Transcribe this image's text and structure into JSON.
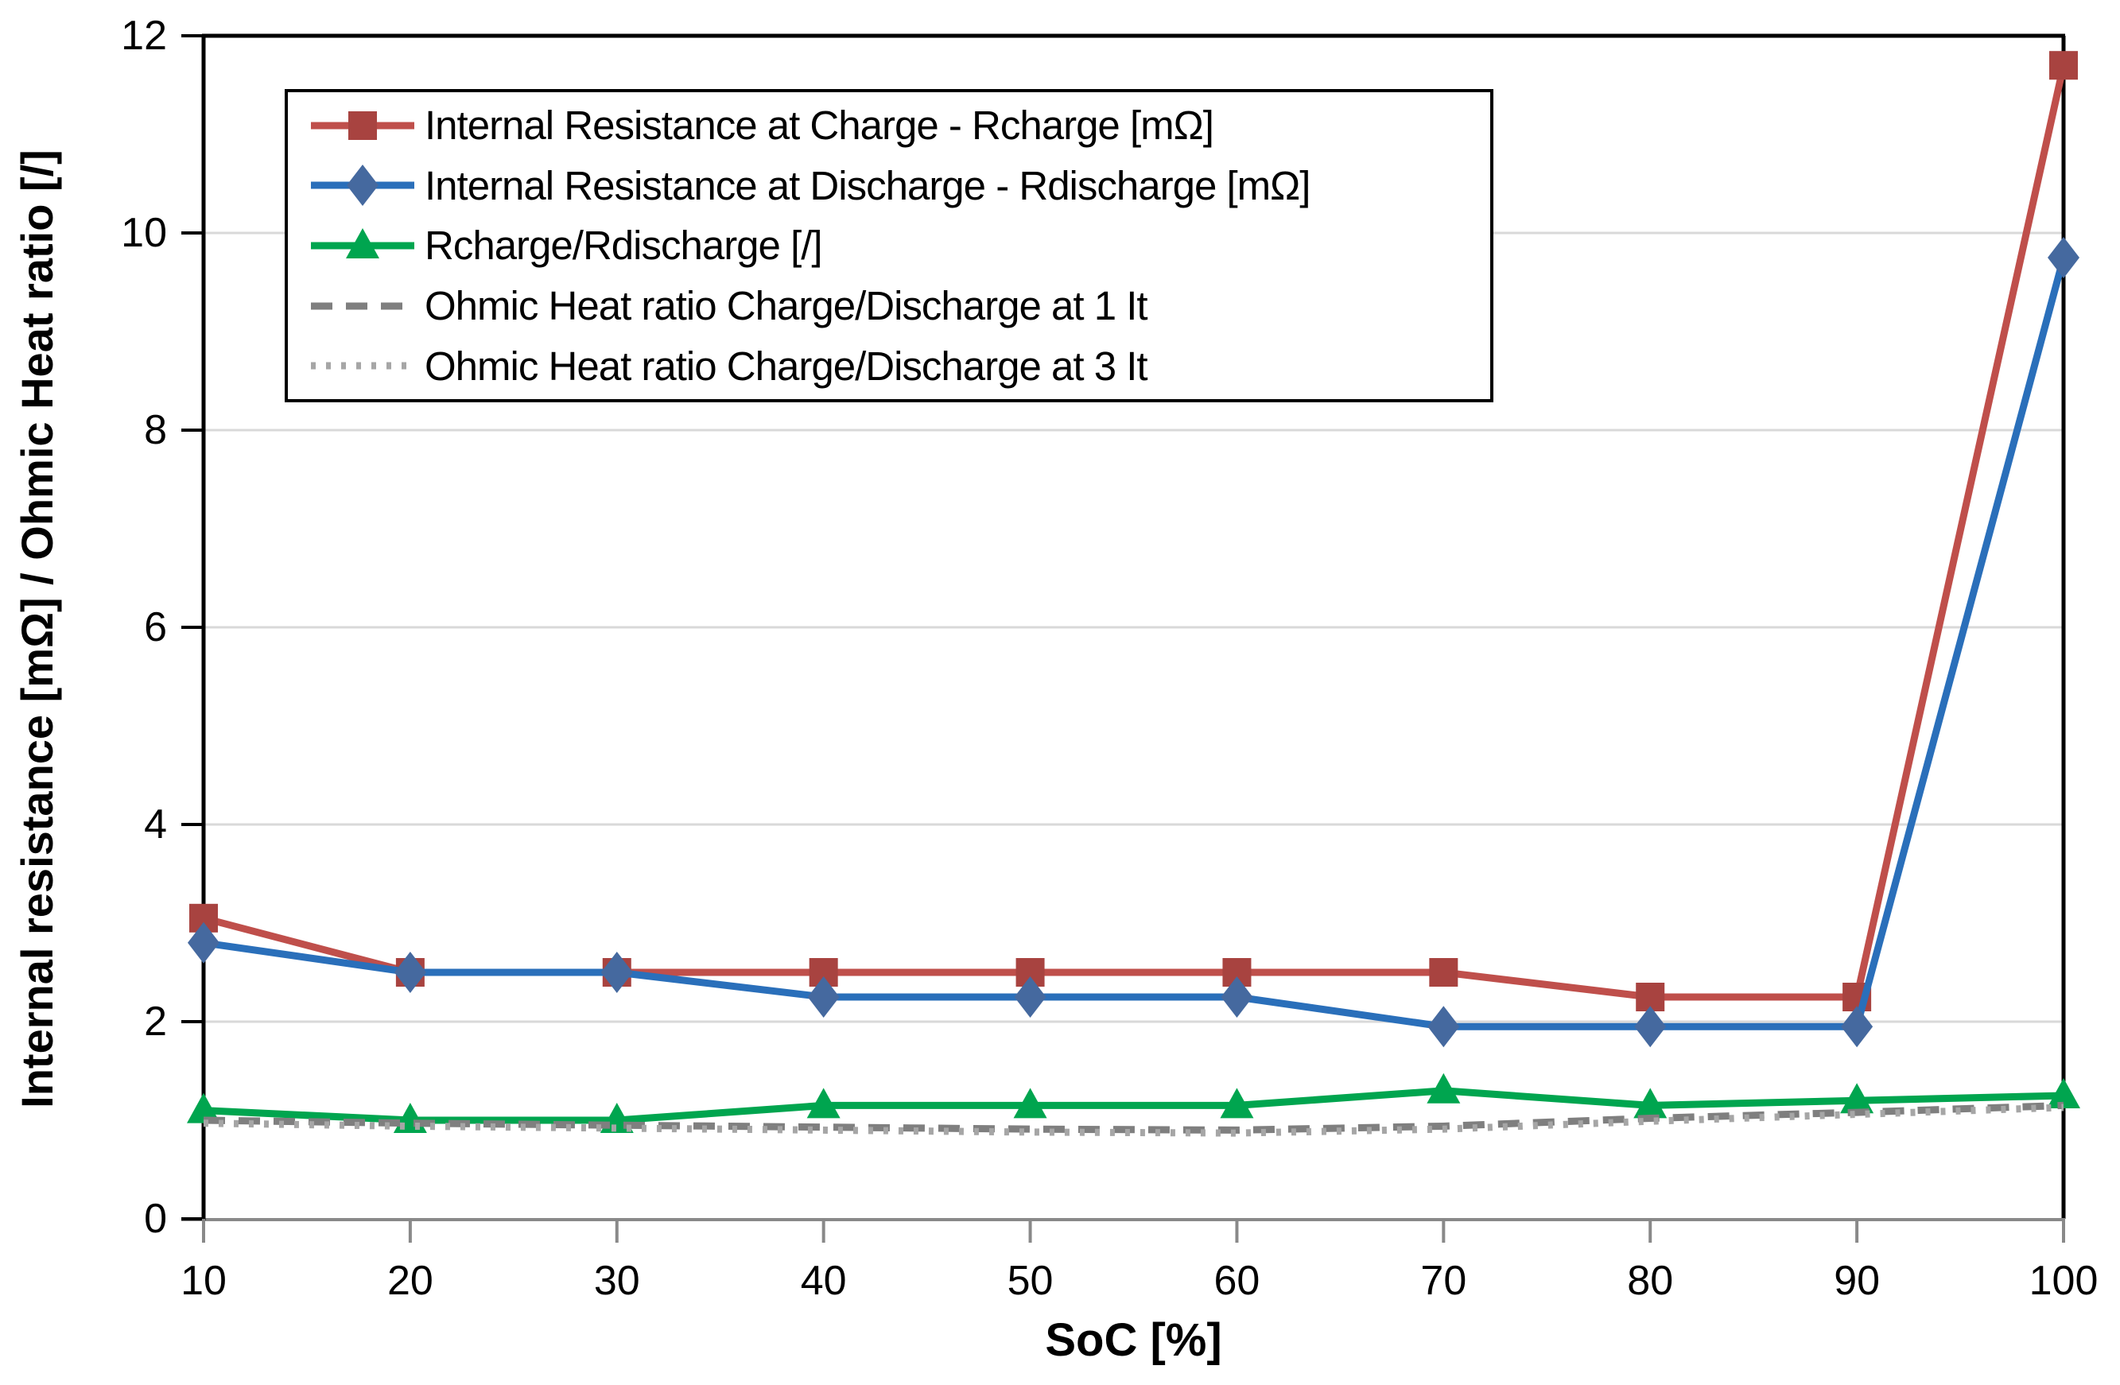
{
  "chart_data": {
    "type": "line",
    "title": "",
    "xlabel": "SoC [%]",
    "ylabel": "Internal resistance [mΩ] / Ohmic Heat ratio [/]",
    "x": [
      10,
      20,
      30,
      40,
      50,
      60,
      70,
      80,
      90,
      100
    ],
    "x_ticks": [
      10,
      20,
      30,
      40,
      50,
      60,
      70,
      80,
      90,
      100
    ],
    "y_ticks": [
      0,
      2,
      4,
      6,
      8,
      10,
      12
    ],
    "ylim": [
      0,
      12
    ],
    "xlim": [
      10,
      100
    ],
    "grid": "horizontal-on",
    "legend_position": "top-left-inside",
    "series": [
      {
        "name": "Internal Resistance at Charge - Rcharge [mΩ]",
        "values": [
          3.05,
          2.5,
          2.5,
          2.5,
          2.5,
          2.5,
          2.5,
          2.25,
          2.25,
          11.7
        ],
        "color": "#bf4f4b",
        "marker_color": "#a84340",
        "marker": "square",
        "line_style": "solid"
      },
      {
        "name": "Internal Resistance at Discharge - Rdischarge [mΩ]",
        "values": [
          2.8,
          2.5,
          2.5,
          2.25,
          2.25,
          2.25,
          1.95,
          1.95,
          1.95,
          9.75
        ],
        "color": "#2a6fba",
        "marker_color": "#45699f",
        "marker": "diamond",
        "line_style": "solid"
      },
      {
        "name": "Rcharge/Rdischarge [/]",
        "values": [
          1.1,
          1.0,
          1.0,
          1.15,
          1.15,
          1.15,
          1.3,
          1.15,
          1.2,
          1.25
        ],
        "color": "#00a54f",
        "marker_color": "#00a54f",
        "marker": "triangle",
        "line_style": "solid"
      },
      {
        "name": "Ohmic Heat ratio Charge/Discharge at 1 It",
        "values": [
          1.0,
          0.97,
          0.95,
          0.93,
          0.91,
          0.9,
          0.94,
          1.02,
          1.08,
          1.15
        ],
        "color": "#7f7f7f",
        "marker_color": "#7f7f7f",
        "marker": "none",
        "line_style": "dashed"
      },
      {
        "name": "Ohmic Heat ratio Charge/Discharge at 3 It",
        "values": [
          0.97,
          0.94,
          0.92,
          0.9,
          0.88,
          0.87,
          0.91,
          0.99,
          1.06,
          1.13
        ],
        "color": "#a6a6a6",
        "marker_color": "#a6a6a6",
        "marker": "none",
        "line_style": "dotted"
      }
    ],
    "axis_colors": {
      "frame": "#000000",
      "bottom_axis": "#898989",
      "gridline": "#d9d9d9",
      "tick_label": "#000000"
    }
  }
}
